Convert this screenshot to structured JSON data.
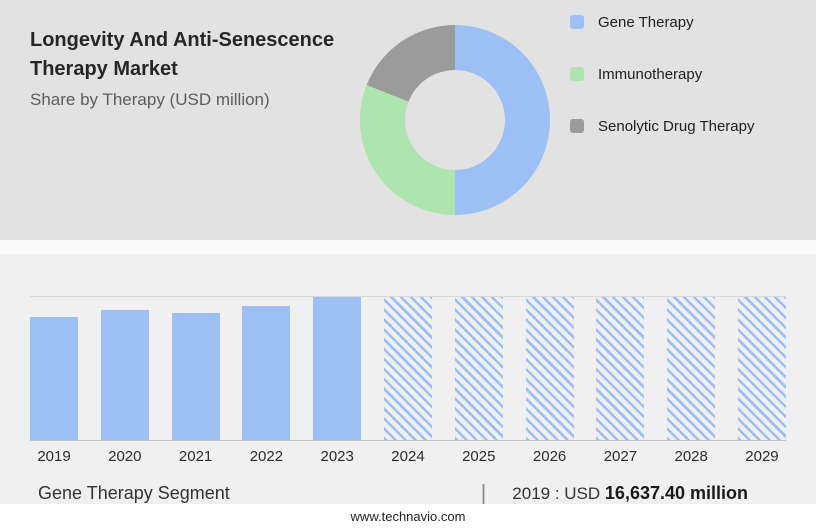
{
  "page": {
    "title_line1": "Longevity And Anti-Senescence",
    "title_line2": "Therapy Market",
    "subtitle": "Share by Therapy (USD million)",
    "footer": "www.technavio.com"
  },
  "colors": {
    "accent_blue": "#9cc0f4",
    "accent_green": "#aee4ae",
    "accent_gray": "#9b9b9b",
    "top_panel_bg": "#e2e2e2",
    "bottom_panel_bg": "#f0f0f0"
  },
  "legend": {
    "items": [
      {
        "label": "Gene Therapy",
        "color": "#9cc0f4"
      },
      {
        "label": "Immunotherapy",
        "color": "#aee4ae"
      },
      {
        "label": "Senolytic Drug Therapy",
        "color": "#9b9b9b"
      }
    ]
  },
  "caption": {
    "segment": "Gene Therapy Segment",
    "separator": "|",
    "year_label": "2019 : USD",
    "value": "16,637.40 million"
  },
  "chart_data": [
    {
      "type": "pie",
      "subtype": "donut",
      "title": "Share by Therapy (USD million)",
      "labels": [
        "Gene Therapy",
        "Immunotherapy",
        "Senolytic Drug Therapy"
      ],
      "values_pct_est": [
        50,
        31,
        19
      ],
      "colors": [
        "#9cc0f4",
        "#aee4ae",
        "#9b9b9b"
      ],
      "legend_position": "right"
    },
    {
      "type": "bar",
      "categories": [
        "2019",
        "2020",
        "2021",
        "2022",
        "2023",
        "2024",
        "2025",
        "2026",
        "2027",
        "2028",
        "2029"
      ],
      "heights_pct_of_max": [
        86,
        91,
        89,
        94,
        100,
        100,
        100,
        100,
        100,
        100,
        100
      ],
      "forecast": [
        false,
        false,
        false,
        false,
        false,
        true,
        true,
        true,
        true,
        true,
        true
      ],
      "known_values_usd_million": {
        "2019": 16637.4
      },
      "bar_color": "#9cc0f4",
      "forecast_style": "diagonal-hatch",
      "grid": "top-gridline-and-baseline",
      "xlabel": "",
      "ylabel": ""
    }
  ]
}
